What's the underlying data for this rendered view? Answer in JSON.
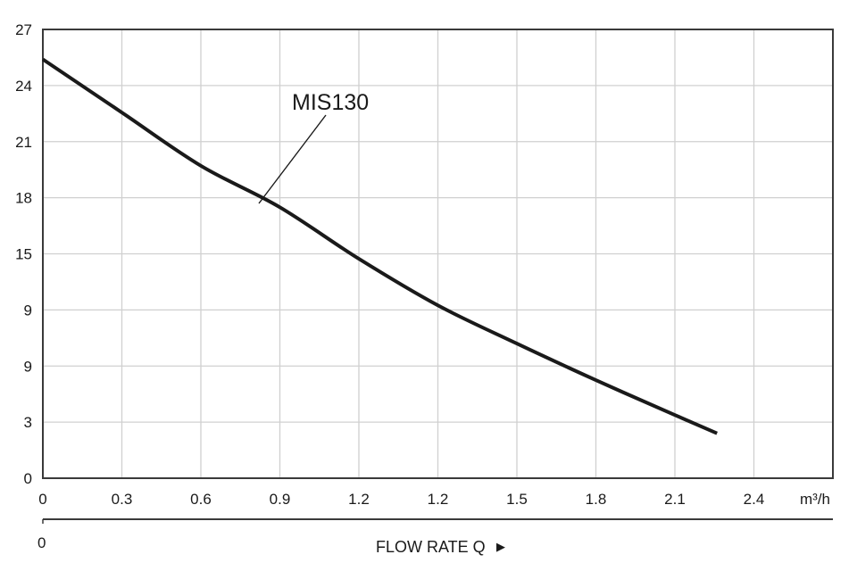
{
  "chart_data": {
    "type": "line",
    "title": "",
    "xlabel": "FLOW RATE Q",
    "x_unit": "m³/h",
    "ylabel": "",
    "x_tick_labels": [
      "0",
      "0.3",
      "0.6",
      "0.9",
      "1.2",
      "1.2",
      "1.5",
      "1.8",
      "2.1",
      "2.4"
    ],
    "y_tick_labels": [
      "0",
      "3",
      "9",
      "9",
      "15",
      "18",
      "21",
      "24",
      "27"
    ],
    "secondary_x_axis": {
      "start_label": "0"
    },
    "xlim": [
      0,
      3.0
    ],
    "ylim": [
      0,
      27
    ],
    "grid": true,
    "legend": "none",
    "series": [
      {
        "name": "MIS130",
        "x": [
          0,
          0.3,
          0.6,
          0.9,
          1.2,
          1.5,
          1.8,
          2.1,
          2.4,
          2.56
        ],
        "values": [
          25.2,
          22.0,
          18.8,
          16.3,
          13.2,
          10.4,
          8.1,
          5.9,
          3.8,
          2.7
        ]
      }
    ],
    "annotations": [
      {
        "text": "MIS130",
        "points_to_x": 0.82,
        "points_to_y": 16.8
      }
    ]
  },
  "labels": {
    "x_unit": "m³/h",
    "x_title": "FLOW RATE Q",
    "x_title_arrow": "▶",
    "secondary_zero": "0",
    "series_name": "MIS130"
  },
  "colors": {
    "curve": "#1a1a1a",
    "grid": "#d0d0d0",
    "axis": "#3a3a3a"
  }
}
